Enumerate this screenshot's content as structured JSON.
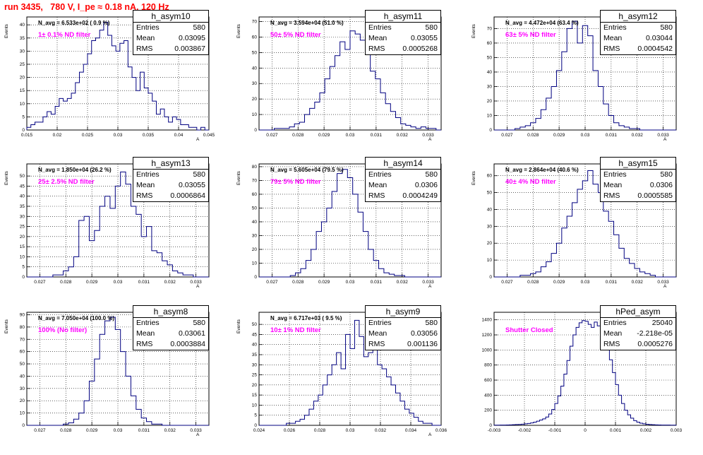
{
  "header": {
    "title": "run 3435,   780 V, I_pe ≈ 0.18 nA, 120 Hz"
  },
  "colors": {
    "line": "#000080",
    "title": "#ff0000",
    "filter_text": "#ff00ff",
    "grid": "#000000"
  },
  "chart_data": [
    {
      "type": "histogram",
      "name": "h_asym10",
      "entries": "580",
      "mean": "0.03095",
      "rms": "0.003867",
      "n_avg": "N_avg = 6.533e+02 ( 0.9 %)",
      "filter": "1± 0.1% ND filter",
      "ylabel": "Events",
      "xlabel": "A",
      "xlim": [
        0.015,
        0.045
      ],
      "ylim": [
        0,
        43
      ],
      "xticks": [
        0.015,
        0.02,
        0.025,
        0.03,
        0.035,
        0.04,
        0.045
      ],
      "xtick_labels": [
        "0.015",
        "0.02",
        "0.025",
        "0.03",
        "0.035",
        "0.04",
        "0.045"
      ],
      "yticks": [
        0,
        5,
        10,
        15,
        20,
        25,
        30,
        35,
        40
      ],
      "ytick_labels": [
        "0",
        "5",
        "10",
        "15",
        "20",
        "25",
        "30",
        "35",
        "40"
      ],
      "values": [
        1,
        2,
        3,
        3,
        5,
        7,
        6,
        9,
        12,
        11,
        12,
        14,
        18,
        22,
        25,
        29,
        34,
        35,
        38,
        41,
        36,
        32,
        30,
        33,
        34,
        24,
        20,
        15,
        22,
        16,
        14,
        11,
        6,
        8,
        5,
        3,
        5,
        4,
        2,
        2,
        1,
        1,
        0,
        1,
        0
      ]
    },
    {
      "type": "histogram",
      "name": "h_asym11",
      "entries": "580",
      "mean": "0.03055",
      "rms": "0.0005268",
      "n_avg": "N_avg = 3.594e+04 (51.0 %)",
      "filter": "50± 5% ND filter",
      "ylabel": "Events",
      "xlabel": "A",
      "xlim": [
        0.0265,
        0.0335
      ],
      "ylim": [
        0,
        73
      ],
      "xticks": [
        0.027,
        0.028,
        0.029,
        0.03,
        0.031,
        0.032,
        0.033
      ],
      "xtick_labels": [
        "0.027",
        "0.028",
        "0.029",
        "0.03",
        "0.031",
        "0.032",
        "0.033"
      ],
      "yticks": [
        0,
        10,
        20,
        30,
        40,
        50,
        60,
        70
      ],
      "ytick_labels": [
        "0",
        "10",
        "20",
        "30",
        "40",
        "50",
        "60",
        "70"
      ],
      "values": [
        0,
        0,
        0,
        1,
        1,
        1,
        2,
        4,
        5,
        10,
        14,
        18,
        24,
        33,
        41,
        48,
        57,
        52,
        64,
        62,
        58,
        50,
        38,
        33,
        24,
        17,
        12,
        8,
        4,
        3,
        2,
        1,
        2,
        1,
        1,
        0
      ]
    },
    {
      "type": "histogram",
      "name": "h_asym12",
      "entries": "580",
      "mean": "0.03044",
      "rms": "0.0004542",
      "n_avg": "N_avg = 4.472e+04 (63.4 %)",
      "filter": "63± 5% ND filter",
      "ylabel": "Events",
      "xlabel": "A",
      "xlim": [
        0.0265,
        0.0335
      ],
      "ylim": [
        0,
        78
      ],
      "xticks": [
        0.027,
        0.028,
        0.029,
        0.03,
        0.031,
        0.032,
        0.033
      ],
      "xtick_labels": [
        "0.027",
        "0.028",
        "0.029",
        "0.03",
        "0.031",
        "0.032",
        "0.033"
      ],
      "yticks": [
        0,
        10,
        20,
        30,
        40,
        50,
        60,
        70
      ],
      "ytick_labels": [
        "0",
        "10",
        "20",
        "30",
        "40",
        "50",
        "60",
        "70"
      ],
      "values": [
        0,
        0,
        0,
        0,
        1,
        2,
        3,
        5,
        8,
        14,
        22,
        30,
        41,
        54,
        70,
        75,
        60,
        72,
        65,
        41,
        30,
        18,
        10,
        5,
        3,
        2,
        1,
        1,
        0,
        0,
        0,
        0,
        0,
        0,
        0
      ]
    },
    {
      "type": "histogram",
      "name": "h_asym13",
      "entries": "580",
      "mean": "0.03055",
      "rms": "0.0006864",
      "n_avg": "N_avg = 1.850e+04 (26.2 %)",
      "filter": "25± 2.5% ND filter",
      "ylabel": "Events",
      "xlabel": "A",
      "xlim": [
        0.0265,
        0.0335
      ],
      "ylim": [
        0,
        56
      ],
      "xticks": [
        0.027,
        0.028,
        0.029,
        0.03,
        0.031,
        0.032,
        0.033
      ],
      "xtick_labels": [
        "0.027",
        "0.028",
        "0.029",
        "0.03",
        "0.031",
        "0.032",
        "0.033"
      ],
      "yticks": [
        0,
        5,
        10,
        15,
        20,
        25,
        30,
        35,
        40,
        45,
        50
      ],
      "ytick_labels": [
        "0",
        "5",
        "10",
        "15",
        "20",
        "25",
        "30",
        "35",
        "40",
        "45",
        "50"
      ],
      "values": [
        0,
        0,
        0,
        0,
        0,
        1,
        1,
        3,
        5,
        10,
        28,
        30,
        18,
        23,
        35,
        40,
        34,
        45,
        52,
        46,
        35,
        31,
        20,
        25,
        13,
        12,
        8,
        6,
        3,
        2,
        1,
        1,
        0,
        0,
        0
      ]
    },
    {
      "type": "histogram",
      "name": "h_asym14",
      "entries": "580",
      "mean": "0.0306",
      "rms": "0.0004249",
      "n_avg": "N_avg = 5.605e+04 (79.5 %)",
      "filter": "79± 5% ND filter",
      "ylabel": "Events",
      "xlabel": "A",
      "xlim": [
        0.0265,
        0.0335
      ],
      "ylim": [
        0,
        82
      ],
      "xticks": [
        0.027,
        0.028,
        0.029,
        0.03,
        0.031,
        0.032,
        0.033
      ],
      "xtick_labels": [
        "0.027",
        "0.028",
        "0.029",
        "0.03",
        "0.031",
        "0.032",
        "0.033"
      ],
      "yticks": [
        0,
        10,
        20,
        30,
        40,
        50,
        60,
        70,
        80
      ],
      "ytick_labels": [
        "0",
        "10",
        "20",
        "30",
        "40",
        "50",
        "60",
        "70",
        "80"
      ],
      "values": [
        0,
        0,
        0,
        0,
        0,
        0,
        1,
        3,
        6,
        12,
        20,
        33,
        40,
        50,
        62,
        75,
        78,
        72,
        60,
        47,
        33,
        20,
        12,
        6,
        3,
        2,
        1,
        1,
        0,
        0,
        0,
        0,
        0,
        0,
        0
      ]
    },
    {
      "type": "histogram",
      "name": "h_asym15",
      "entries": "580",
      "mean": "0.0306",
      "rms": "0.0005585",
      "n_avg": "N_avg = 2.864e+04 (40.6 %)",
      "filter": "40± 4% ND filter",
      "ylabel": "Events",
      "xlabel": "A",
      "xlim": [
        0.0265,
        0.0335
      ],
      "ylim": [
        0,
        67
      ],
      "xticks": [
        0.027,
        0.028,
        0.029,
        0.03,
        0.031,
        0.032,
        0.033
      ],
      "xtick_labels": [
        "0.027",
        "0.028",
        "0.029",
        "0.03",
        "0.031",
        "0.032",
        "0.033"
      ],
      "yticks": [
        0,
        10,
        20,
        30,
        40,
        50,
        60
      ],
      "ytick_labels": [
        "0",
        "10",
        "20",
        "30",
        "40",
        "50",
        "60"
      ],
      "values": [
        0,
        0,
        0,
        0,
        0,
        1,
        1,
        2,
        3,
        6,
        9,
        14,
        20,
        29,
        36,
        44,
        52,
        57,
        63,
        55,
        50,
        39,
        33,
        25,
        17,
        11,
        8,
        5,
        3,
        2,
        1,
        0,
        0,
        0,
        0
      ]
    },
    {
      "type": "histogram",
      "name": "h_asym8",
      "entries": "580",
      "mean": "0.03061",
      "rms": "0.0003884",
      "n_avg": "N_avg = 7.050e+04 (100.0 %)",
      "filter": "100% (No filter)",
      "ylabel": "Events",
      "xlabel": "A",
      "xlim": [
        0.0265,
        0.0335
      ],
      "ylim": [
        0,
        92
      ],
      "xticks": [
        0.027,
        0.028,
        0.029,
        0.03,
        0.031,
        0.032,
        0.033
      ],
      "xtick_labels": [
        "0.027",
        "0.028",
        "0.029",
        "0.03",
        "0.031",
        "0.032",
        "0.033"
      ],
      "yticks": [
        0,
        10,
        20,
        30,
        40,
        50,
        60,
        70,
        80,
        90
      ],
      "ytick_labels": [
        "0",
        "10",
        "20",
        "30",
        "40",
        "50",
        "60",
        "70",
        "80",
        "90"
      ],
      "values": [
        0,
        0,
        0,
        0,
        0,
        0,
        0,
        1,
        2,
        5,
        10,
        20,
        36,
        54,
        74,
        85,
        88,
        78,
        60,
        40,
        24,
        13,
        6,
        3,
        1,
        1,
        0,
        0,
        0,
        0,
        0,
        0,
        0,
        0,
        0
      ]
    },
    {
      "type": "histogram",
      "name": "h_asym9",
      "entries": "580",
      "mean": "0.03056",
      "rms": "0.001136",
      "n_avg": "N_avg = 6.717e+03 ( 9.5 %)",
      "filter": "10± 1% ND filter",
      "ylabel": "Events",
      "xlabel": "A",
      "xlim": [
        0.024,
        0.036
      ],
      "ylim": [
        0,
        56
      ],
      "xticks": [
        0.024,
        0.026,
        0.028,
        0.03,
        0.032,
        0.034,
        0.036
      ],
      "xtick_labels": [
        "0.024",
        "0.026",
        "0.028",
        "0.03",
        "0.032",
        "0.034",
        "0.036"
      ],
      "yticks": [
        0,
        5,
        10,
        15,
        20,
        25,
        30,
        35,
        40,
        45,
        50
      ],
      "ytick_labels": [
        "0",
        "5",
        "10",
        "15",
        "20",
        "25",
        "30",
        "35",
        "40",
        "45",
        "50"
      ],
      "values": [
        0,
        0,
        0,
        0,
        0,
        0,
        1,
        1,
        2,
        3,
        5,
        8,
        12,
        15,
        20,
        25,
        30,
        36,
        28,
        45,
        38,
        52,
        44,
        34,
        36,
        40,
        30,
        28,
        24,
        20,
        16,
        12,
        8,
        6,
        4,
        2,
        1,
        1,
        0,
        0
      ]
    },
    {
      "type": "histogram",
      "name": "hPed_asym",
      "entries": "25040",
      "mean": "-2.218e-05",
      "rms": "0.0005276",
      "n_avg": "",
      "filter": "Shutter Closed",
      "ylabel": "",
      "xlabel": "",
      "xlim": [
        -0.003,
        0.003
      ],
      "ylim": [
        0,
        1500
      ],
      "xticks": [
        -0.003,
        -0.002,
        -0.001,
        0,
        0.001,
        0.002,
        0.003
      ],
      "xtick_labels": [
        "-0.003",
        "-0.002",
        "-0.001",
        "0",
        "0.001",
        "0.002",
        "0.003"
      ],
      "yticks": [
        0,
        200,
        400,
        600,
        800,
        1000,
        1200,
        1400
      ],
      "ytick_labels": [
        "0",
        "200",
        "400",
        "600",
        "800",
        "1000",
        "1200",
        "1400"
      ],
      "values": [
        2,
        2,
        3,
        3,
        5,
        6,
        8,
        10,
        12,
        15,
        20,
        25,
        32,
        42,
        55,
        70,
        85,
        110,
        150,
        210,
        290,
        390,
        520,
        680,
        860,
        1050,
        1200,
        1300,
        1360,
        1390,
        1380,
        1340,
        1300,
        1370,
        1320,
        1260,
        1150,
        1020,
        870,
        700,
        540,
        400,
        290,
        200,
        140,
        95,
        62,
        42,
        28,
        20,
        14,
        10,
        8,
        6,
        5,
        4,
        3,
        3,
        2,
        2
      ]
    }
  ]
}
